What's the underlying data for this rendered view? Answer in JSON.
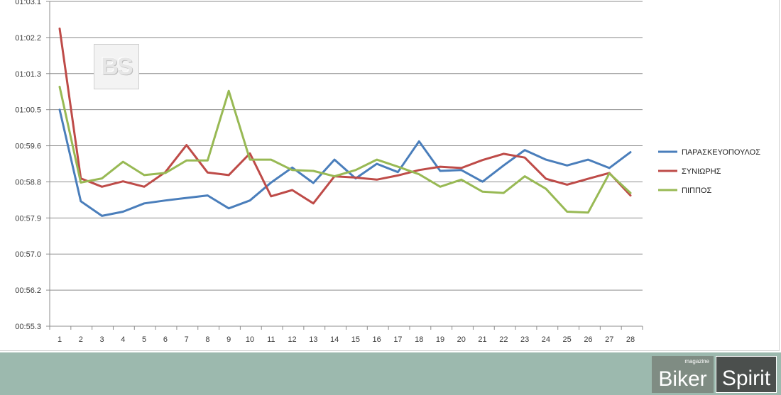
{
  "chart_data": {
    "type": "line",
    "title": "",
    "xlabel": "",
    "ylabel": "",
    "x": [
      1,
      2,
      3,
      4,
      5,
      6,
      7,
      8,
      9,
      10,
      11,
      12,
      13,
      14,
      15,
      16,
      17,
      18,
      19,
      20,
      21,
      22,
      23,
      24,
      25,
      26,
      27,
      28
    ],
    "y_ticks": [
      "00:55.3",
      "00:56.2",
      "00:57.0",
      "00:57.9",
      "00:58.8",
      "00:59.6",
      "01:00.5",
      "01:01.3",
      "01:02.2",
      "01:03.1"
    ],
    "ylim": [
      55.3,
      63.1
    ],
    "y_unit": "seconds past 1 minute boundary (mm:ss.s)",
    "grid": true,
    "legend_position": "right",
    "series": [
      {
        "name": "ΠΑΡΑΣΚΕΥΟΠΟΥΛΟΣ",
        "color": "#4a7ebb",
        "values": [
          60.5,
          58.3,
          57.95,
          58.05,
          58.25,
          58.32,
          58.38,
          58.44,
          58.13,
          58.32,
          58.75,
          59.11,
          58.74,
          59.3,
          58.85,
          59.2,
          59.0,
          59.74,
          59.03,
          59.05,
          58.77,
          59.16,
          59.53,
          59.3,
          59.16,
          59.3,
          59.1,
          59.48
        ]
      },
      {
        "name": "ΣΥΝΙΩΡΗΣ",
        "color": "#be4b48",
        "values": [
          62.45,
          58.85,
          58.65,
          58.78,
          58.65,
          59.0,
          59.65,
          58.99,
          58.93,
          59.45,
          58.42,
          58.57,
          58.25,
          58.9,
          58.87,
          58.82,
          58.92,
          59.05,
          59.13,
          59.1,
          59.29,
          59.44,
          59.35,
          58.84,
          58.7,
          58.84,
          58.98,
          58.44
        ]
      },
      {
        "name": "ΠΙΠΠΟΣ",
        "color": "#98b954",
        "values": [
          61.05,
          58.75,
          58.85,
          59.25,
          58.93,
          58.98,
          59.28,
          59.28,
          60.95,
          59.3,
          59.3,
          59.05,
          59.03,
          58.9,
          59.05,
          59.3,
          59.13,
          58.95,
          58.65,
          58.82,
          58.53,
          58.5,
          58.9,
          58.6,
          58.05,
          58.03,
          58.97,
          58.5
        ]
      }
    ]
  },
  "watermark": {
    "text": "BS"
  },
  "brand": {
    "left_word": "Biker",
    "tagline": "magazine",
    "right_word": "Spirit"
  }
}
